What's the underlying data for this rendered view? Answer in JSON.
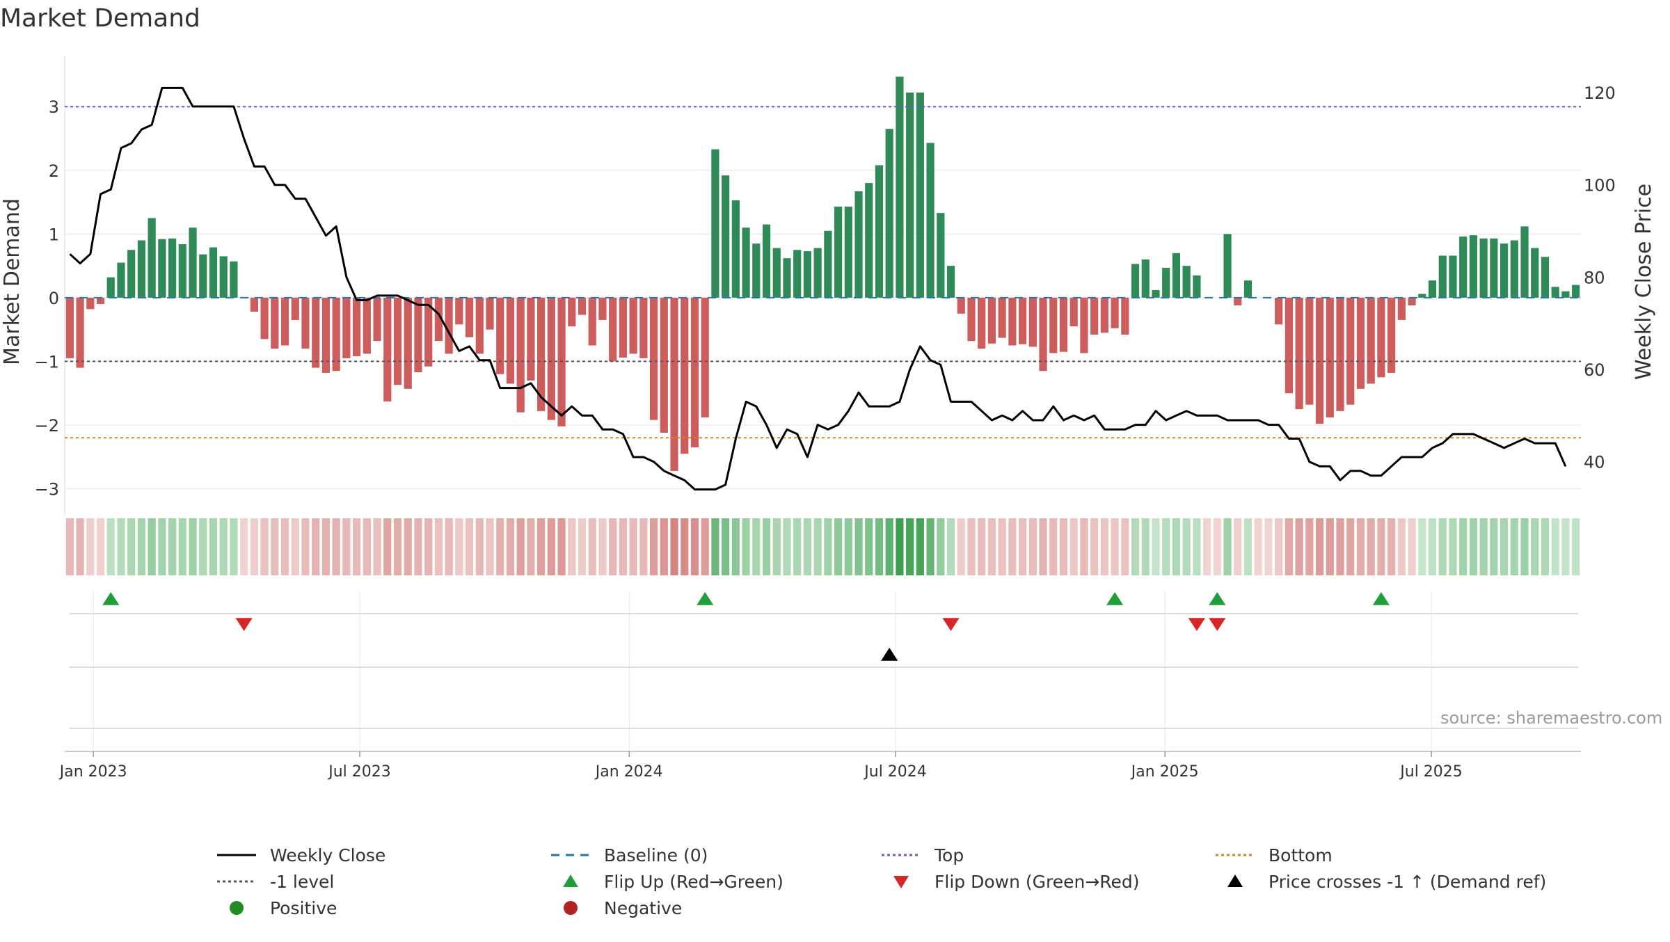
{
  "chart_data": {
    "type": "bar",
    "title": "Market Demand",
    "source": "source: sharemaestro.com",
    "ylabel_left": "Market Demand",
    "ylabel_right": "Weekly Close Price",
    "y_left_range": [
      -3.3,
      3.8
    ],
    "y_left_ticks": [
      "3",
      "2",
      "1",
      "0",
      "−1",
      "−2",
      "−3"
    ],
    "y_left_tick_values": [
      3,
      2,
      1,
      0,
      -1,
      -2,
      -3
    ],
    "y_right_range": [
      30,
      128
    ],
    "y_right_ticks": [
      "120",
      "100",
      "80",
      "60",
      "40"
    ],
    "y_right_tick_values": [
      120,
      100,
      80,
      60,
      40
    ],
    "x_tick_labels": [
      "Jan 2023",
      "Jul 2023",
      "Jan 2024",
      "Jul 2024",
      "Jan 2025",
      "Jul 2025"
    ],
    "x_tick_weeks": [
      2.3,
      28.3,
      54.6,
      80.6,
      106.9,
      132.9
    ],
    "reference_lines": {
      "top": 3.0,
      "level_minus_1": -1.0,
      "bottom": -2.2,
      "baseline": 0
    },
    "demand": [
      -0.95,
      -1.1,
      -0.18,
      -0.1,
      0.32,
      0.55,
      0.75,
      0.9,
      1.25,
      0.92,
      0.93,
      0.84,
      1.1,
      0.68,
      0.79,
      0.65,
      0.57,
      0,
      -0.22,
      -0.65,
      -0.8,
      -0.75,
      -0.35,
      -0.8,
      -1.1,
      -1.18,
      -1.15,
      -0.95,
      -0.92,
      -0.88,
      -0.68,
      -1.63,
      -1.37,
      -1.43,
      -1.17,
      -1.08,
      -0.68,
      -0.88,
      -0.42,
      -0.62,
      -0.88,
      -0.5,
      -1.2,
      -1.35,
      -1.8,
      -1.3,
      -1.78,
      -1.92,
      -2.02,
      -0.45,
      -0.27,
      -0.75,
      -0.35,
      -1.0,
      -0.94,
      -0.88,
      -0.95,
      -1.92,
      -2.12,
      -2.72,
      -2.45,
      -2.35,
      -1.88,
      2.33,
      1.92,
      1.53,
      1.1,
      0.85,
      1.15,
      0.78,
      0.62,
      0.75,
      0.73,
      0.78,
      1.05,
      1.43,
      1.43,
      1.67,
      1.8,
      2.08,
      2.65,
      3.47,
      3.22,
      3.22,
      2.43,
      1.33,
      0.5,
      -0.25,
      -0.68,
      -0.8,
      -0.72,
      -0.63,
      -0.75,
      -0.73,
      -0.77,
      -1.15,
      -0.87,
      -0.85,
      -0.45,
      -0.87,
      -0.58,
      -0.55,
      -0.48,
      -0.58,
      0.53,
      0.6,
      0.12,
      0.47,
      0.7,
      0.5,
      0.35,
      0.0,
      0.0,
      1.0,
      -0.12,
      0.27,
      0.0,
      0.0,
      -0.42,
      -1.5,
      -1.75,
      -1.68,
      -1.98,
      -1.88,
      -1.78,
      -1.68,
      -1.43,
      -1.35,
      -1.25,
      -1.18,
      -0.35,
      -0.12,
      0.06,
      0.27,
      0.66,
      0.66,
      0.96,
      0.98,
      0.93,
      0.93,
      0.85,
      0.9,
      1.12,
      0.78,
      0.64,
      0.17,
      0.1,
      0.2
    ],
    "price": [
      85,
      83,
      85,
      98,
      99,
      108,
      109,
      112,
      113,
      121,
      121,
      121,
      117,
      117,
      117,
      117,
      117,
      110,
      104,
      104,
      100,
      100,
      97,
      97,
      93,
      89,
      91,
      80,
      75,
      75,
      76,
      76,
      76,
      75,
      74,
      74,
      72,
      68,
      64,
      65,
      62,
      62,
      56,
      56,
      56,
      57,
      54,
      52,
      50,
      52,
      50,
      50,
      47,
      47,
      46,
      41,
      41,
      40,
      38,
      37,
      36,
      34,
      34,
      34,
      35,
      45,
      53,
      52,
      48,
      43,
      47,
      46,
      41,
      48,
      47,
      48,
      51,
      55,
      52,
      52,
      52,
      53,
      60,
      65,
      62,
      61,
      53,
      53,
      53,
      51,
      49,
      50,
      49,
      51,
      49,
      49,
      52,
      49,
      50,
      49,
      50,
      47,
      47,
      47,
      48,
      48,
      51,
      49,
      50,
      51,
      50,
      50,
      50,
      49,
      49,
      49,
      49,
      48,
      48,
      45,
      45,
      40,
      39,
      39,
      36,
      38,
      38,
      37,
      37,
      39,
      41,
      41,
      41,
      43,
      44,
      46,
      46,
      46,
      45,
      44,
      43,
      44,
      45,
      44,
      44,
      44,
      39
    ],
    "flip_up_weeks": [
      4,
      62,
      102,
      112,
      128
    ],
    "flip_down_weeks": [
      17,
      86,
      110,
      112
    ],
    "price_cross_weeks": [
      80
    ],
    "legend": [
      "Weekly Close",
      "Baseline (0)",
      "Top",
      "Bottom",
      "-1 level",
      "Flip Up (Red→Green)",
      "Flip Down (Green→Red)",
      "Price crosses -1 ↑ (Demand ref)",
      "Positive",
      "Negative"
    ]
  },
  "colors": {
    "positive_bar": "#2e8b57",
    "negative_bar": "#cd5c5c",
    "price_line": "#000000",
    "baseline": "#1f77b4",
    "top_line": "#6a5acd",
    "minus1_line": "#555555",
    "bottom_line": "#d4861a",
    "flip_up": "#1f9e3a",
    "flip_down": "#d62728",
    "cross": "#000000",
    "positive_dot": "#228b22",
    "negative_dot": "#b22222"
  }
}
